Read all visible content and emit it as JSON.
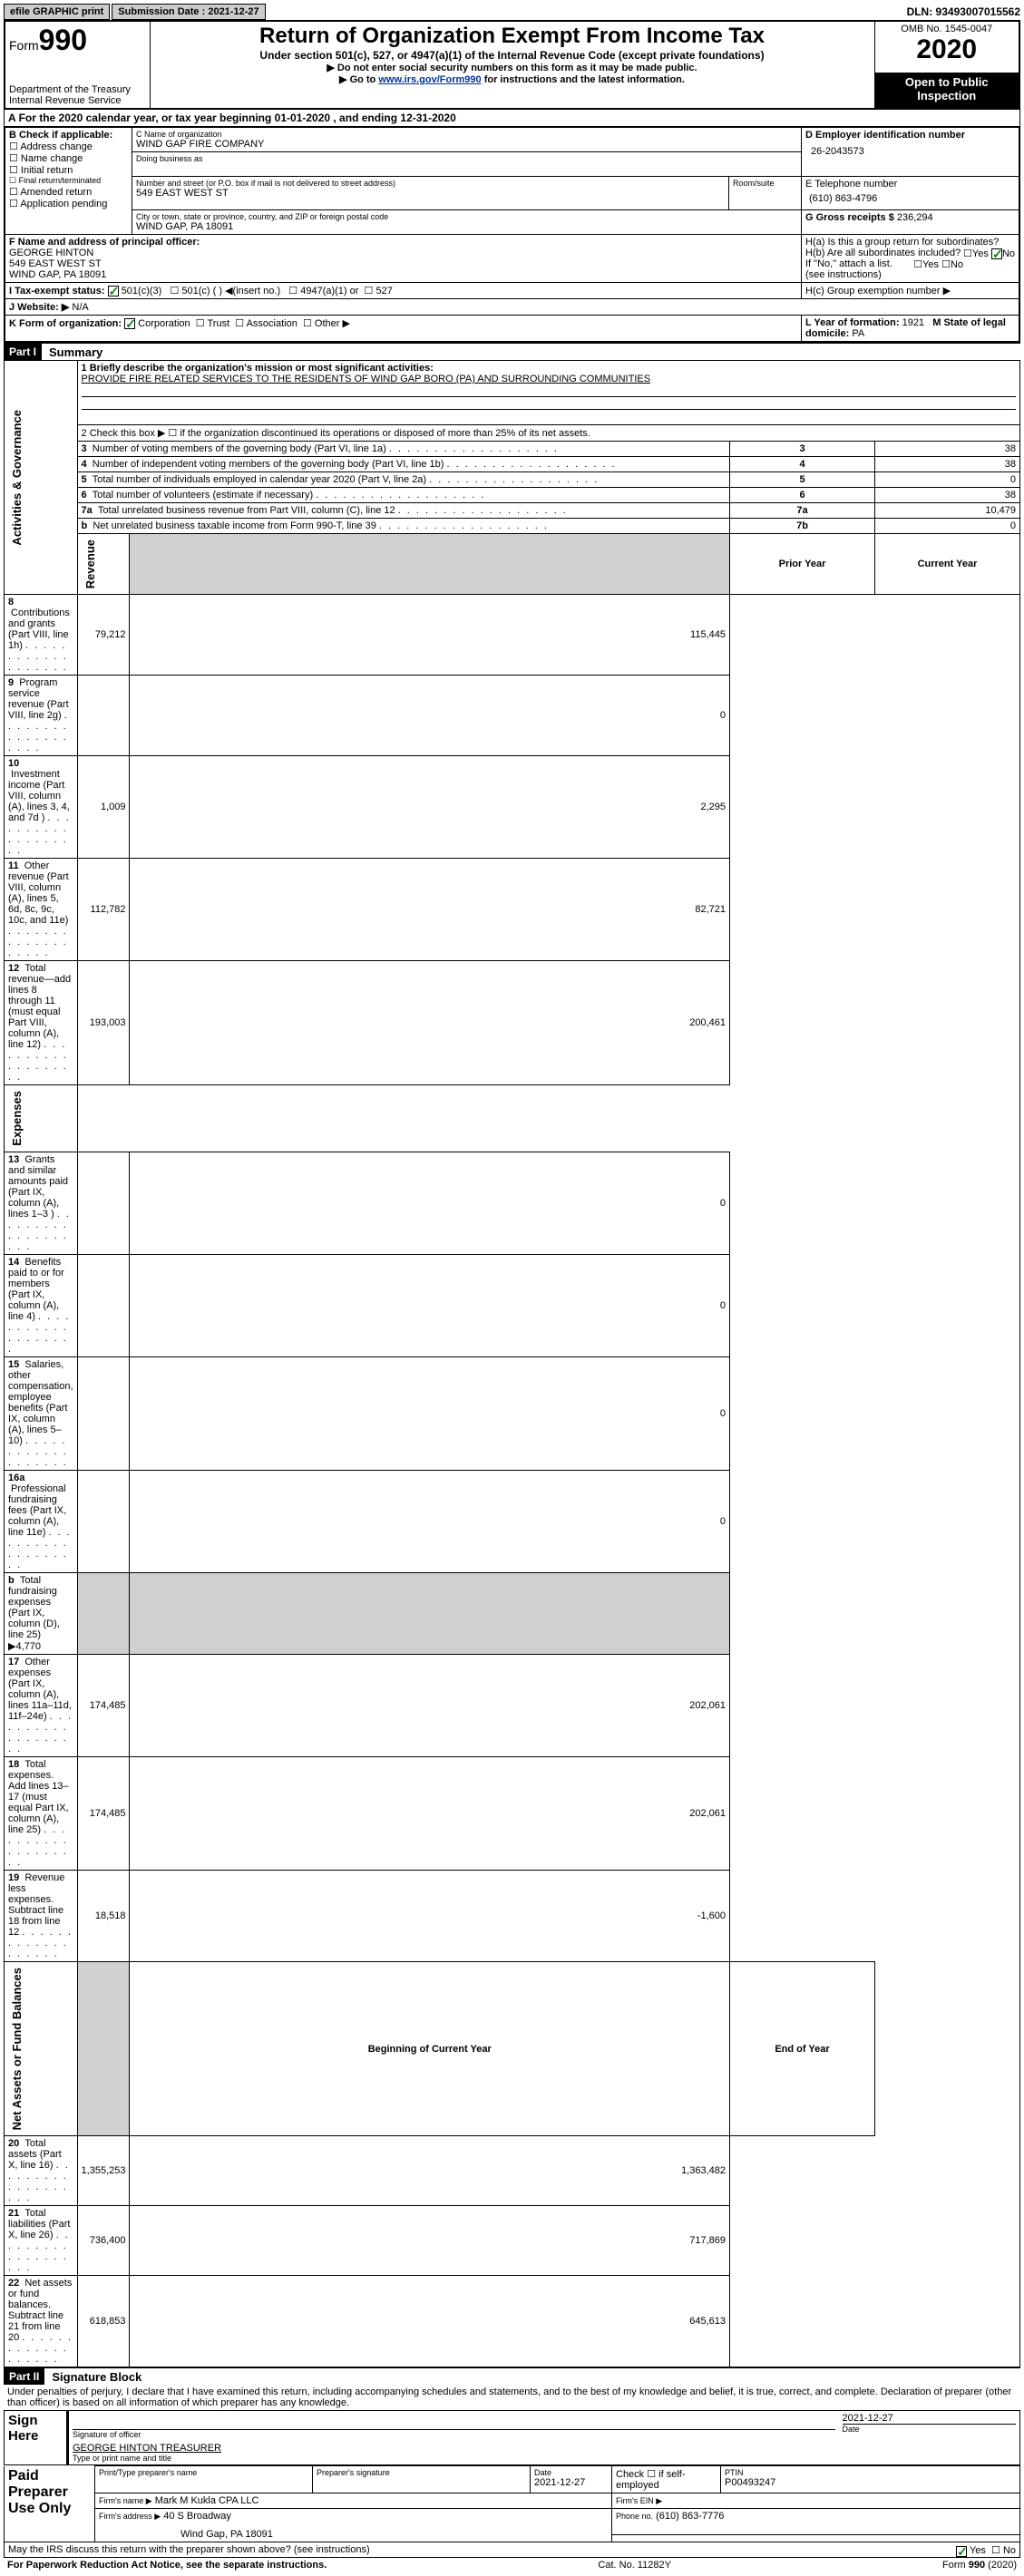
{
  "topbar": {
    "efile": "efile GRAPHIC print",
    "sub_label": "Submission Date :",
    "sub_date": "2021-12-27",
    "dln": "DLN: 93493007015562"
  },
  "header": {
    "form_label": "Form",
    "form_num": "990",
    "dept": "Department of the Treasury\nInternal Revenue Service",
    "title": "Return of Organization Exempt From Income Tax",
    "subtitle": "Under section 501(c), 527, or 4947(a)(1) of the Internal Revenue Code (except private foundations)",
    "instr1": "▶ Do not enter social security numbers on this form as it may be made public.",
    "instr2_pre": "▶ Go to ",
    "instr2_link": "www.irs.gov/Form990",
    "instr2_post": " for instructions and the latest information.",
    "omb": "OMB No. 1545-0047",
    "year": "2020",
    "open": "Open to Public Inspection"
  },
  "row_a": "For the 2020 calendar year, or tax year beginning 01-01-2020   , and ending 12-31-2020",
  "box_b": {
    "label": "B Check if applicable:",
    "items": [
      "Address change",
      "Name change",
      "Initial return",
      "Final return/terminated",
      "Amended return",
      "Application pending"
    ]
  },
  "box_c": {
    "label": "C Name of organization",
    "name": "WIND GAP FIRE COMPANY",
    "dba_label": "Doing business as",
    "street_label": "Number and street (or P.O. box if mail is not delivered to street address)",
    "street": "549 EAST WEST ST",
    "room_label": "Room/suite",
    "city_label": "City or town, state or province, country, and ZIP or foreign postal code",
    "city": "WIND GAP, PA  18091"
  },
  "box_d": {
    "label": "D Employer identification number",
    "ein": "26-2043573"
  },
  "box_e": {
    "label": "E Telephone number",
    "phone": "(610) 863-4796"
  },
  "box_g": {
    "label": "G Gross receipts $",
    "amount": "236,294"
  },
  "box_f": {
    "label": "F Name and address of principal officer:",
    "name": "GEORGE HINTON",
    "street": "549 EAST WEST ST",
    "city": "WIND GAP, PA  18091"
  },
  "box_h": {
    "ha": "H(a)  Is this a group return for subordinates?",
    "hb": "H(b)  Are all subordinates included?",
    "hb_note": "If \"No,\" attach a list. (see instructions)",
    "hc": "H(c)  Group exemption number ▶"
  },
  "box_i": {
    "label": "I   Tax-exempt status:",
    "opt1": "501(c)(3)",
    "opt2": "501(c) (  ) ◀(insert no.)",
    "opt3": "4947(a)(1) or",
    "opt4": "527"
  },
  "box_j": {
    "label": "J   Website: ▶",
    "val": "N/A"
  },
  "box_k": {
    "label": "K Form of organization:",
    "opts": [
      "Corporation",
      "Trust",
      "Association",
      "Other ▶"
    ]
  },
  "box_l": {
    "label": "L Year of formation:",
    "val": "1921"
  },
  "box_m": {
    "label": "M State of legal domicile:",
    "val": "PA"
  },
  "part1": {
    "header": "Part I",
    "title": "Summary",
    "line1_label": "1   Briefly describe the organization's mission or most significant activities:",
    "line1_val": "PROVIDE FIRE RELATED SERVICES TO THE RESIDENTS OF WIND GAP BORO (PA) AND SURROUNDING COMMUNITIES",
    "line2": "2   Check this box ▶ ☐  if the organization discontinued its operations or disposed of more than 25% of its net assets.",
    "vert_labels": {
      "gov": "Activities & Governance",
      "rev": "Revenue",
      "exp": "Expenses",
      "net": "Net Assets or Fund Balances"
    },
    "col_prior": "Prior Year",
    "col_current": "Current Year",
    "col_begin": "Beginning of Current Year",
    "col_end": "End of Year",
    "rows_gov": [
      {
        "num": "3",
        "text": "Number of voting members of the governing body (Part VI, line 1a)",
        "box": "3",
        "val": "38"
      },
      {
        "num": "4",
        "text": "Number of independent voting members of the governing body (Part VI, line 1b)",
        "box": "4",
        "val": "38"
      },
      {
        "num": "5",
        "text": "Total number of individuals employed in calendar year 2020 (Part V, line 2a)",
        "box": "5",
        "val": "0"
      },
      {
        "num": "6",
        "text": "Total number of volunteers (estimate if necessary)",
        "box": "6",
        "val": "38"
      },
      {
        "num": "7a",
        "text": "Total unrelated business revenue from Part VIII, column (C), line 12",
        "box": "7a",
        "val": "10,479"
      },
      {
        "num": "b",
        "text": "Net unrelated business taxable income from Form 990-T, line 39",
        "box": "7b",
        "val": "0"
      }
    ],
    "rows_rev": [
      {
        "num": "8",
        "text": "Contributions and grants (Part VIII, line 1h)",
        "prior": "79,212",
        "curr": "115,445"
      },
      {
        "num": "9",
        "text": "Program service revenue (Part VIII, line 2g)",
        "prior": "",
        "curr": "0"
      },
      {
        "num": "10",
        "text": "Investment income (Part VIII, column (A), lines 3, 4, and 7d )",
        "prior": "1,009",
        "curr": "2,295"
      },
      {
        "num": "11",
        "text": "Other revenue (Part VIII, column (A), lines 5, 6d, 8c, 9c, 10c, and 11e)",
        "prior": "112,782",
        "curr": "82,721"
      },
      {
        "num": "12",
        "text": "Total revenue—add lines 8 through 11 (must equal Part VIII, column (A), line 12)",
        "prior": "193,003",
        "curr": "200,461"
      }
    ],
    "rows_exp": [
      {
        "num": "13",
        "text": "Grants and similar amounts paid (Part IX, column (A), lines 1–3 )",
        "prior": "",
        "curr": "0"
      },
      {
        "num": "14",
        "text": "Benefits paid to or for members (Part IX, column (A), line 4)",
        "prior": "",
        "curr": "0"
      },
      {
        "num": "15",
        "text": "Salaries, other compensation, employee benefits (Part IX, column (A), lines 5–10)",
        "prior": "",
        "curr": "0"
      },
      {
        "num": "16a",
        "text": "Professional fundraising fees (Part IX, column (A), line 11e)",
        "prior": "",
        "curr": "0"
      },
      {
        "num": "b",
        "text": "Total fundraising expenses (Part IX, column (D), line 25) ▶4,770",
        "prior": "gray",
        "curr": "gray"
      },
      {
        "num": "17",
        "text": "Other expenses (Part IX, column (A), lines 11a–11d, 11f–24e)",
        "prior": "174,485",
        "curr": "202,061"
      },
      {
        "num": "18",
        "text": "Total expenses. Add lines 13–17 (must equal Part IX, column (A), line 25)",
        "prior": "174,485",
        "curr": "202,061"
      },
      {
        "num": "19",
        "text": "Revenue less expenses. Subtract line 18 from line 12",
        "prior": "18,518",
        "curr": "-1,600"
      }
    ],
    "rows_net": [
      {
        "num": "20",
        "text": "Total assets (Part X, line 16)",
        "prior": "1,355,253",
        "curr": "1,363,482"
      },
      {
        "num": "21",
        "text": "Total liabilities (Part X, line 26)",
        "prior": "736,400",
        "curr": "717,869"
      },
      {
        "num": "22",
        "text": "Net assets or fund balances. Subtract line 21 from line 20",
        "prior": "618,853",
        "curr": "645,613"
      }
    ]
  },
  "part2": {
    "header": "Part II",
    "title": "Signature Block",
    "penalties": "Under penalties of perjury, I declare that I have examined this return, including accompanying schedules and statements, and to the best of my knowledge and belief, it is true, correct, and complete. Declaration of preparer (other than officer) is based on all information of which preparer has any knowledge.",
    "sign_here": "Sign Here",
    "sig_officer": "Signature of officer",
    "date": "Date",
    "sig_date": "2021-12-27",
    "name_title": "GEORGE HINTON  TREASURER",
    "type_or_print": "Type or print name and title",
    "paid_prep": "Paid Preparer Use Only",
    "prep_name_label": "Print/Type preparer's name",
    "prep_sig_label": "Preparer's signature",
    "prep_date_label": "Date",
    "prep_date": "2021-12-27",
    "check_if": "Check ☐ if self-employed",
    "ptin_label": "PTIN",
    "ptin": "P00493247",
    "firm_name_label": "Firm's name    ▶",
    "firm_name": "Mark M Kukla CPA LLC",
    "firm_ein_label": "Firm's EIN ▶",
    "firm_addr_label": "Firm's address ▶",
    "firm_addr": "40 S Broadway",
    "firm_city": "Wind Gap, PA  18091",
    "firm_phone_label": "Phone no.",
    "firm_phone": "(610) 863-7776",
    "discuss": "May the IRS discuss this return with the preparer shown above? (see instructions)"
  },
  "footer": {
    "paperwork": "For Paperwork Reduction Act Notice, see the separate instructions.",
    "catno": "Cat. No. 11282Y",
    "formpage": "Form 990 (2020)"
  },
  "yes": "Yes",
  "no": "No"
}
